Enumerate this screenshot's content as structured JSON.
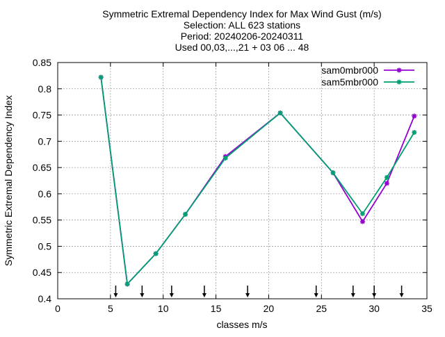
{
  "chart_data": {
    "type": "line",
    "title_lines": [
      "Symmetric Extremal Dependency Index  for Max Wind Gust (m/s)",
      "Selection: ALL    623 stations",
      "Period: 20240206-20240311",
      "Used 00,03,...,21 + 03 06 ... 48"
    ],
    "xlabel": "classes m/s",
    "ylabel": "Symmetric Extremal Dependency Index",
    "xlim": [
      0,
      35
    ],
    "ylim": [
      0.4,
      0.85
    ],
    "xticks": [
      0,
      5,
      10,
      15,
      20,
      25,
      30,
      35
    ],
    "yticks": [
      0.4,
      0.45,
      0.5,
      0.55,
      0.6,
      0.65,
      0.7,
      0.75,
      0.8,
      0.85
    ],
    "xtick_labels": [
      "0",
      "5",
      "10",
      "15",
      "20",
      "25",
      "30",
      "35"
    ],
    "ytick_labels": [
      "0.4",
      "0.45",
      "0.5",
      "0.55",
      "0.6",
      "0.65",
      "0.7",
      "0.75",
      "0.8",
      "0.85"
    ],
    "grid": true,
    "legend_position": "top-right",
    "series": [
      {
        "name": "sam0mbr000",
        "color": "#9400d3",
        "x": [
          4.1,
          6.6,
          9.3,
          12.1,
          15.9,
          21.1,
          26.1,
          28.9,
          31.2,
          33.8
        ],
        "y": [
          0.822,
          0.428,
          0.486,
          0.561,
          0.671,
          0.754,
          0.64,
          0.547,
          0.62,
          0.748
        ]
      },
      {
        "name": "sam5mbr000",
        "color": "#009e73",
        "x": [
          4.1,
          6.6,
          9.3,
          12.1,
          15.9,
          21.1,
          26.1,
          28.9,
          31.2,
          33.8
        ],
        "y": [
          0.822,
          0.428,
          0.486,
          0.561,
          0.668,
          0.754,
          0.64,
          0.562,
          0.631,
          0.717
        ]
      }
    ],
    "class_boundaries": [
      5.5,
      8.0,
      10.8,
      13.9,
      18.0,
      24.5,
      28.0,
      30.0,
      32.6
    ]
  }
}
